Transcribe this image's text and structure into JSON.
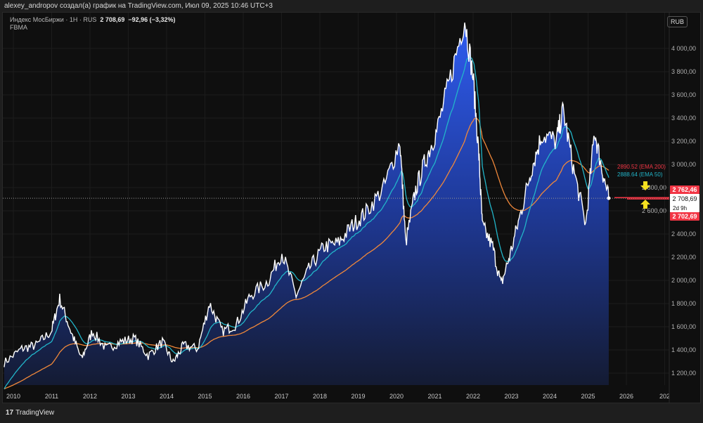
{
  "header": {
    "title": "alexey_andropov создал(а) график на TradingView.com, Июл 09, 2025 10:46 UTC+3"
  },
  "legend": {
    "symbol": "Индекс МосБиржи · 1Н · RUS",
    "price": "2 708,69",
    "change": "−92,96 (−3,32%)",
    "indicator": "FBMA"
  },
  "currency_button": "RUB",
  "footer": {
    "brand": "TradingView",
    "logo_text": "17"
  },
  "colors": {
    "price": "#ffffff",
    "fill_top": "#2f5cf0",
    "fill_bottom": "#141b33",
    "ema50": "#22b5c9",
    "ema200": "#f0883a",
    "marker": "#f23645",
    "arrow": "#f5e020"
  },
  "labels": {
    "ema200": "2890.52 (EMA 200)",
    "ema50": "2888.64 (EMA 50)",
    "upper": "2 762,46",
    "current": "2 708,69",
    "countdown": "2d 9h",
    "lower": "2 702,69"
  },
  "chart_data": {
    "type": "area",
    "title": "Индекс МосБиржи · 1Н · RUS",
    "xlabel": "",
    "ylabel": "",
    "xlim": [
      2009.75,
      2027.0
    ],
    "ylim": [
      1050,
      4300
    ],
    "x_ticks": [
      "2010",
      "2011",
      "2012",
      "2013",
      "2014",
      "2015",
      "2016",
      "2017",
      "2018",
      "2019",
      "2020",
      "2021",
      "2022",
      "2023",
      "2024",
      "2025",
      "2026",
      "202"
    ],
    "y_ticks": [
      "1 200,00",
      "1 400,00",
      "1 600,00",
      "1 800,00",
      "2 000,00",
      "2 200,00",
      "2 400,00",
      "2 600,00",
      "2 800,00",
      "3 000,00",
      "3 200,00",
      "3 400,00",
      "3 600,00",
      "3 800,00",
      "4 000,00"
    ],
    "y_tick_values": [
      1200,
      1400,
      1600,
      1800,
      2000,
      2200,
      2400,
      2600,
      2800,
      3000,
      3200,
      3400,
      3600,
      3800,
      4000
    ],
    "series": [
      {
        "name": "Индекс МосБиржи",
        "x": [
          2009.76,
          2010.22,
          2010.59,
          2010.99,
          2011.21,
          2011.5,
          2011.78,
          2012.06,
          2012.42,
          2012.79,
          2013.16,
          2013.52,
          2013.89,
          2014.17,
          2014.44,
          2014.81,
          2015.12,
          2015.45,
          2015.82,
          2016.18,
          2016.64,
          2017.01,
          2017.38,
          2017.74,
          2018.11,
          2018.48,
          2018.84,
          2019.21,
          2019.67,
          2020.09,
          2020.24,
          2020.5,
          2020.77,
          2021.05,
          2021.41,
          2021.78,
          2022.0,
          2022.15,
          2022.24,
          2022.51,
          2022.73,
          2022.97,
          2023.25,
          2023.52,
          2023.8,
          2024.17,
          2024.35,
          2024.62,
          2024.94,
          2025.17,
          2025.36,
          2025.54
        ],
        "y": [
          1290,
          1410,
          1440,
          1560,
          1840,
          1560,
          1320,
          1560,
          1410,
          1470,
          1500,
          1350,
          1470,
          1290,
          1440,
          1410,
          1800,
          1560,
          1620,
          1870,
          1990,
          2240,
          1870,
          2110,
          2290,
          2320,
          2470,
          2590,
          2800,
          3200,
          2320,
          2780,
          3050,
          3290,
          3750,
          4260,
          3750,
          3080,
          2470,
          2290,
          1960,
          2230,
          2590,
          2960,
          3260,
          3200,
          3470,
          2960,
          2480,
          3290,
          2960,
          2708.69
        ]
      },
      {
        "name": "EMA 50",
        "last": 2888.64
      },
      {
        "name": "EMA 200",
        "last": 2890.52
      }
    ],
    "horizontal_lines": [
      2762.46,
      2708.69,
      2702.69
    ],
    "grid": true
  }
}
